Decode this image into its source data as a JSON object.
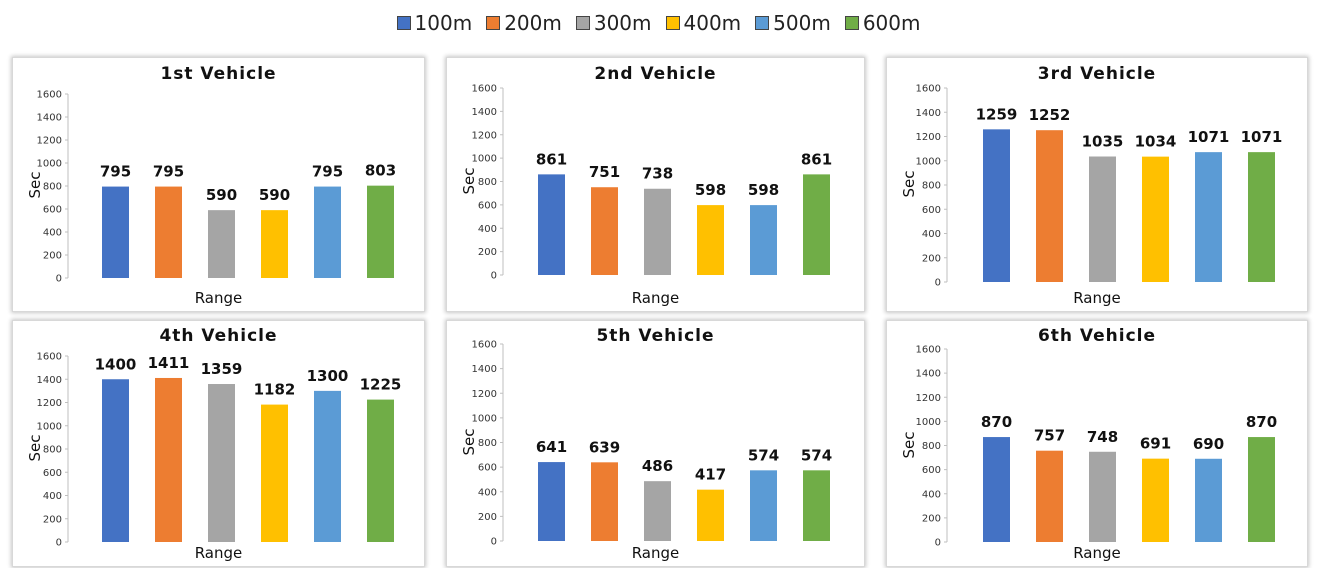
{
  "legend": [
    {
      "label": "100m",
      "color": "#4472C4"
    },
    {
      "label": "200m",
      "color": "#ED7D31"
    },
    {
      "label": "300m",
      "color": "#A5A5A5"
    },
    {
      "label": "400m",
      "color": "#FFC000"
    },
    {
      "label": "500m",
      "color": "#5B9BD5"
    },
    {
      "label": "600m",
      "color": "#70AD47"
    }
  ],
  "chart_data": [
    {
      "type": "bar",
      "title": "1st Vehicle",
      "xlabel": "Range",
      "ylabel": "Sec",
      "categories": [
        "100m",
        "200m",
        "300m",
        "400m",
        "500m",
        "600m"
      ],
      "values": [
        795,
        795,
        590,
        590,
        795,
        803
      ],
      "ylim": [
        0,
        1600
      ],
      "yticks": [
        0,
        200,
        400,
        600,
        800,
        1000,
        1200,
        1400,
        1600
      ],
      "grid": false
    },
    {
      "type": "bar",
      "title": "2nd Vehicle",
      "xlabel": "Range",
      "ylabel": "Sec",
      "categories": [
        "100m",
        "200m",
        "300m",
        "400m",
        "500m",
        "600m"
      ],
      "values": [
        861,
        751,
        738,
        598,
        598,
        861
      ],
      "ylim": [
        0,
        1600
      ],
      "yticks": [
        0,
        200,
        400,
        600,
        800,
        1000,
        1200,
        1400,
        1600
      ],
      "grid": false
    },
    {
      "type": "bar",
      "title": "3rd Vehicle",
      "xlabel": "Range",
      "ylabel": "Sec",
      "categories": [
        "100m",
        "200m",
        "300m",
        "400m",
        "500m",
        "600m"
      ],
      "values": [
        1259,
        1252,
        1035,
        1034,
        1071,
        1071
      ],
      "ylim": [
        0,
        1600
      ],
      "yticks": [
        0,
        200,
        400,
        600,
        800,
        1000,
        1200,
        1400,
        1600
      ],
      "grid": false
    },
    {
      "type": "bar",
      "title": "4th Vehicle",
      "xlabel": "Range",
      "ylabel": "Sec",
      "categories": [
        "100m",
        "200m",
        "300m",
        "400m",
        "500m",
        "600m"
      ],
      "values": [
        1400,
        1411,
        1359,
        1182,
        1300,
        1225
      ],
      "ylim": [
        0,
        1600
      ],
      "yticks": [
        0,
        200,
        400,
        600,
        800,
        1000,
        1200,
        1400,
        1600
      ],
      "grid": false
    },
    {
      "type": "bar",
      "title": "5th Vehicle",
      "xlabel": "Range",
      "ylabel": "Sec",
      "categories": [
        "100m",
        "200m",
        "300m",
        "400m",
        "500m",
        "600m"
      ],
      "values": [
        641,
        639,
        486,
        417,
        574,
        574
      ],
      "ylim": [
        0,
        1600
      ],
      "yticks": [
        0,
        200,
        400,
        600,
        800,
        1000,
        1200,
        1400,
        1600
      ],
      "grid": false
    },
    {
      "type": "bar",
      "title": "6th Vehicle",
      "xlabel": "Range",
      "ylabel": "Sec",
      "categories": [
        "100m",
        "200m",
        "300m",
        "400m",
        "500m",
        "600m"
      ],
      "values": [
        870,
        757,
        748,
        691,
        690,
        870
      ],
      "ylim": [
        0,
        1600
      ],
      "yticks": [
        0,
        200,
        400,
        600,
        800,
        1000,
        1200,
        1400,
        1600
      ],
      "grid": false
    }
  ]
}
